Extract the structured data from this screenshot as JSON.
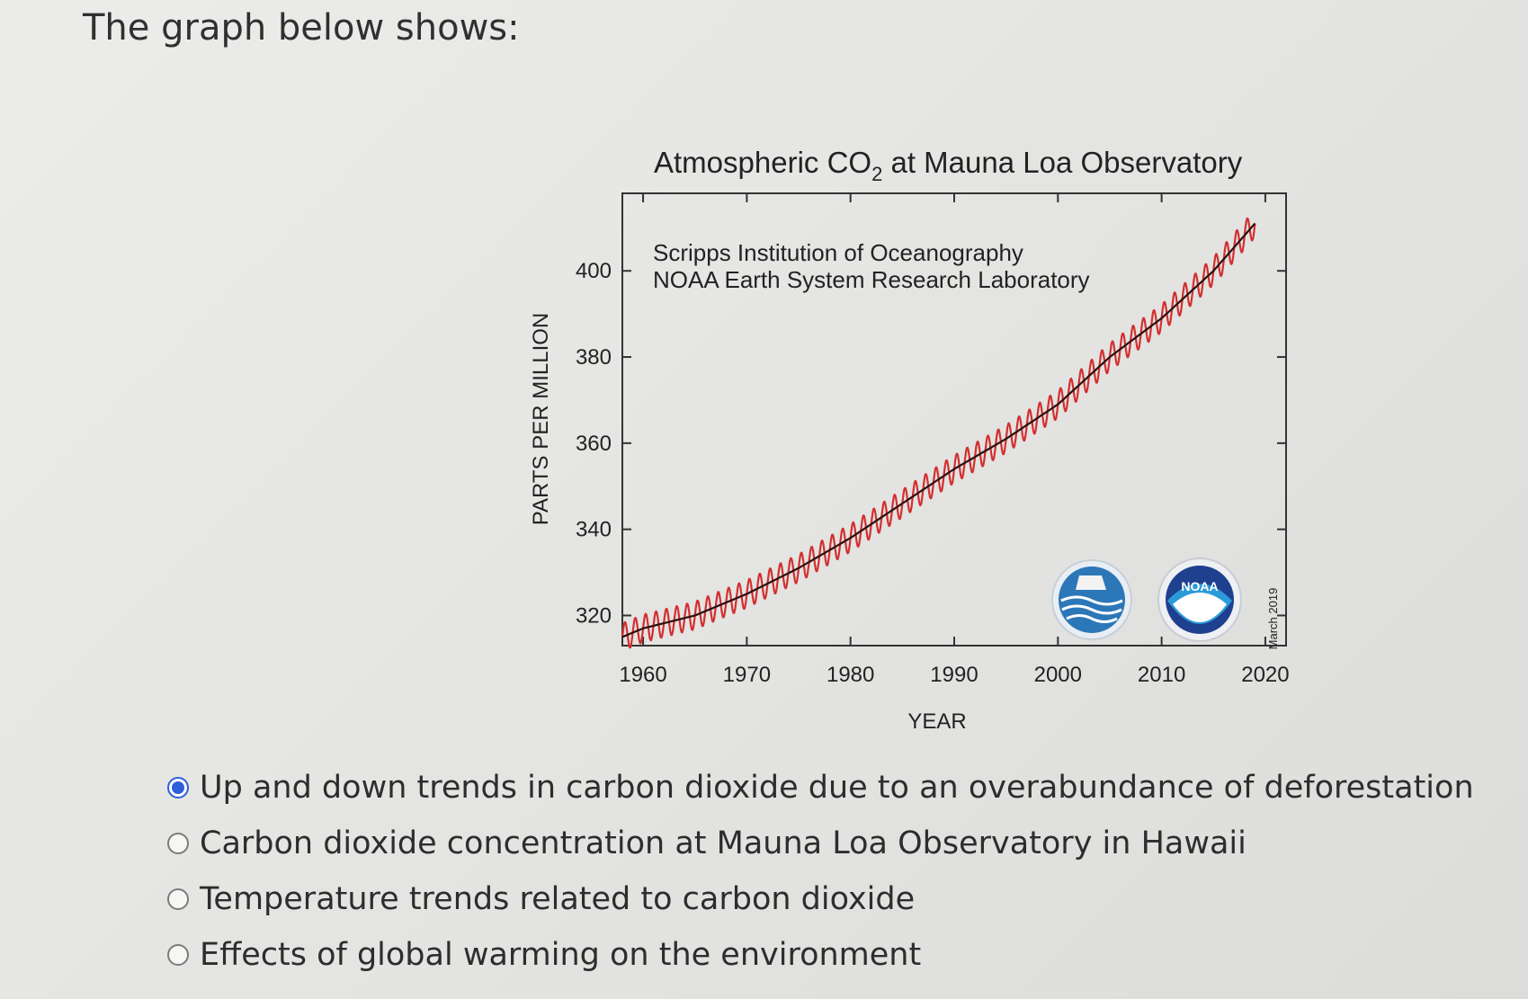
{
  "question": "The graph below shows:",
  "options": [
    {
      "label": "Up and down trends in carbon dioxide due to an overabundance of deforestation",
      "selected": true
    },
    {
      "label": "Carbon dioxide concentration at Mauna Loa Observatory in Hawaii",
      "selected": false
    },
    {
      "label": "Temperature trends related to carbon dioxide",
      "selected": false
    },
    {
      "label": "Effects of global warming on the environment",
      "selected": false
    }
  ],
  "chart_data": {
    "type": "line",
    "title_main": "Atmospheric CO",
    "title_sub": "2",
    "title_rest": " at Mauna Loa Observatory",
    "annotation_line1": "Scripps Institution of Oceanography",
    "annotation_line2": "NOAA Earth System Research Laboratory",
    "date_note": "March 2019",
    "logo_text": "NOAA",
    "xlabel": "YEAR",
    "ylabel": "PARTS PER MILLION",
    "xlim": [
      1958,
      2022
    ],
    "ylim": [
      313,
      418
    ],
    "x_ticks": [
      1960,
      1970,
      1980,
      1990,
      2000,
      2010,
      2020
    ],
    "y_ticks": [
      320,
      340,
      360,
      380,
      400
    ],
    "grid": false,
    "series": [
      {
        "color": "#d32f2f",
        "x": [
          1958,
          1960,
          1965,
          1970,
          1975,
          1980,
          1985,
          1990,
          1995,
          2000,
          2005,
          2010,
          2015,
          2019
        ],
        "y": [
          315,
          317,
          320,
          325,
          331,
          338,
          346,
          354,
          361,
          369,
          380,
          389,
          400,
          411
        ]
      },
      {
        "color": "#2a1010",
        "x": [
          1958,
          1960,
          1965,
          1970,
          1975,
          1980,
          1985,
          1990,
          1995,
          2000,
          2005,
          2010,
          2015,
          2019
        ],
        "y": [
          315,
          317,
          320,
          325,
          331,
          338,
          346,
          354,
          361,
          369,
          380,
          389,
          400,
          411
        ]
      }
    ]
  }
}
